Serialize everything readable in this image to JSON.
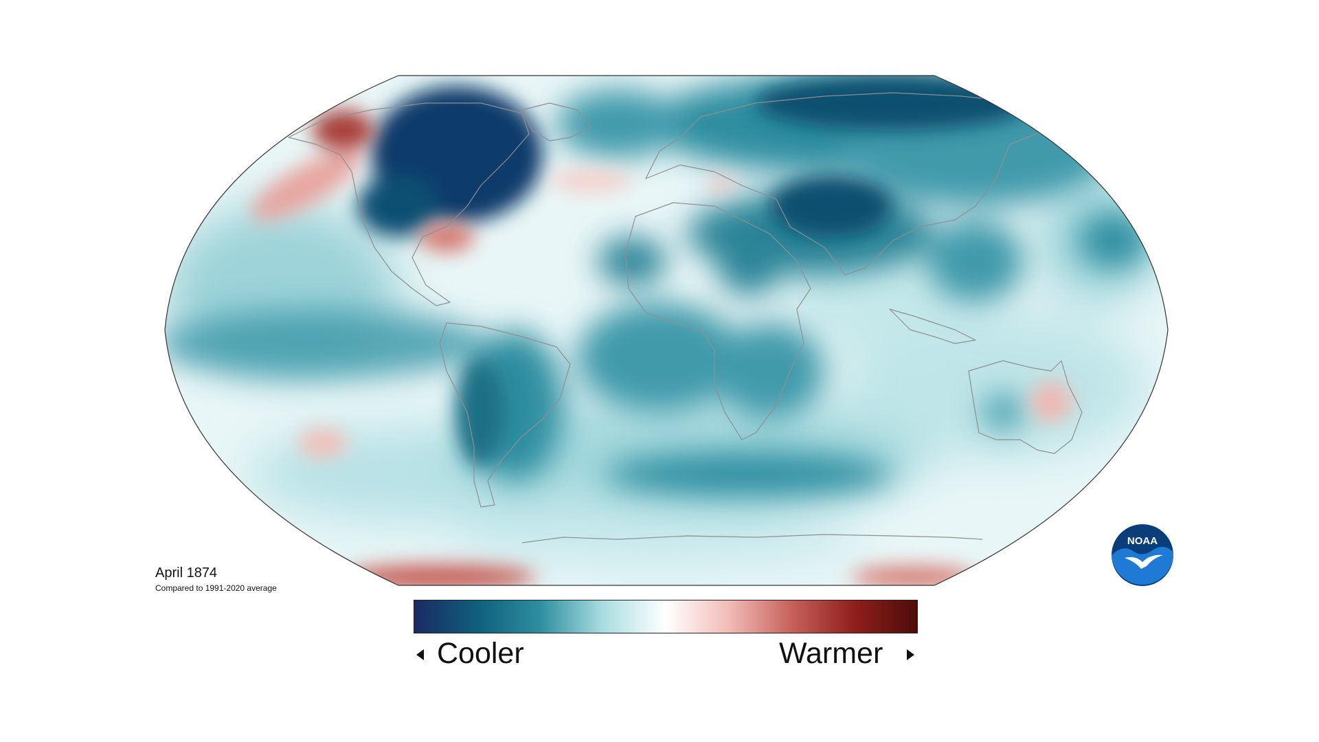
{
  "caption": {
    "date": "April 1874",
    "subtitle": "Compared to 1991-2020 average"
  },
  "legend": {
    "cooler_label": "Cooler",
    "warmer_label": "Warmer",
    "colors": [
      "#1a2a63",
      "#0f5f7c",
      "#2e8ea0",
      "#a9dde1",
      "#ffffff",
      "#f2bcb7",
      "#c7615b",
      "#8f1f1c",
      "#4d0c08"
    ]
  },
  "logo": {
    "text": "NOAA",
    "colors": {
      "outer": "#0a3e7a",
      "inner": "#1f7ad6"
    }
  },
  "map": {
    "projection": "Robinson",
    "ocean_base_color": "#e9f6f7",
    "coastline_color": "#8f8f8f"
  }
}
